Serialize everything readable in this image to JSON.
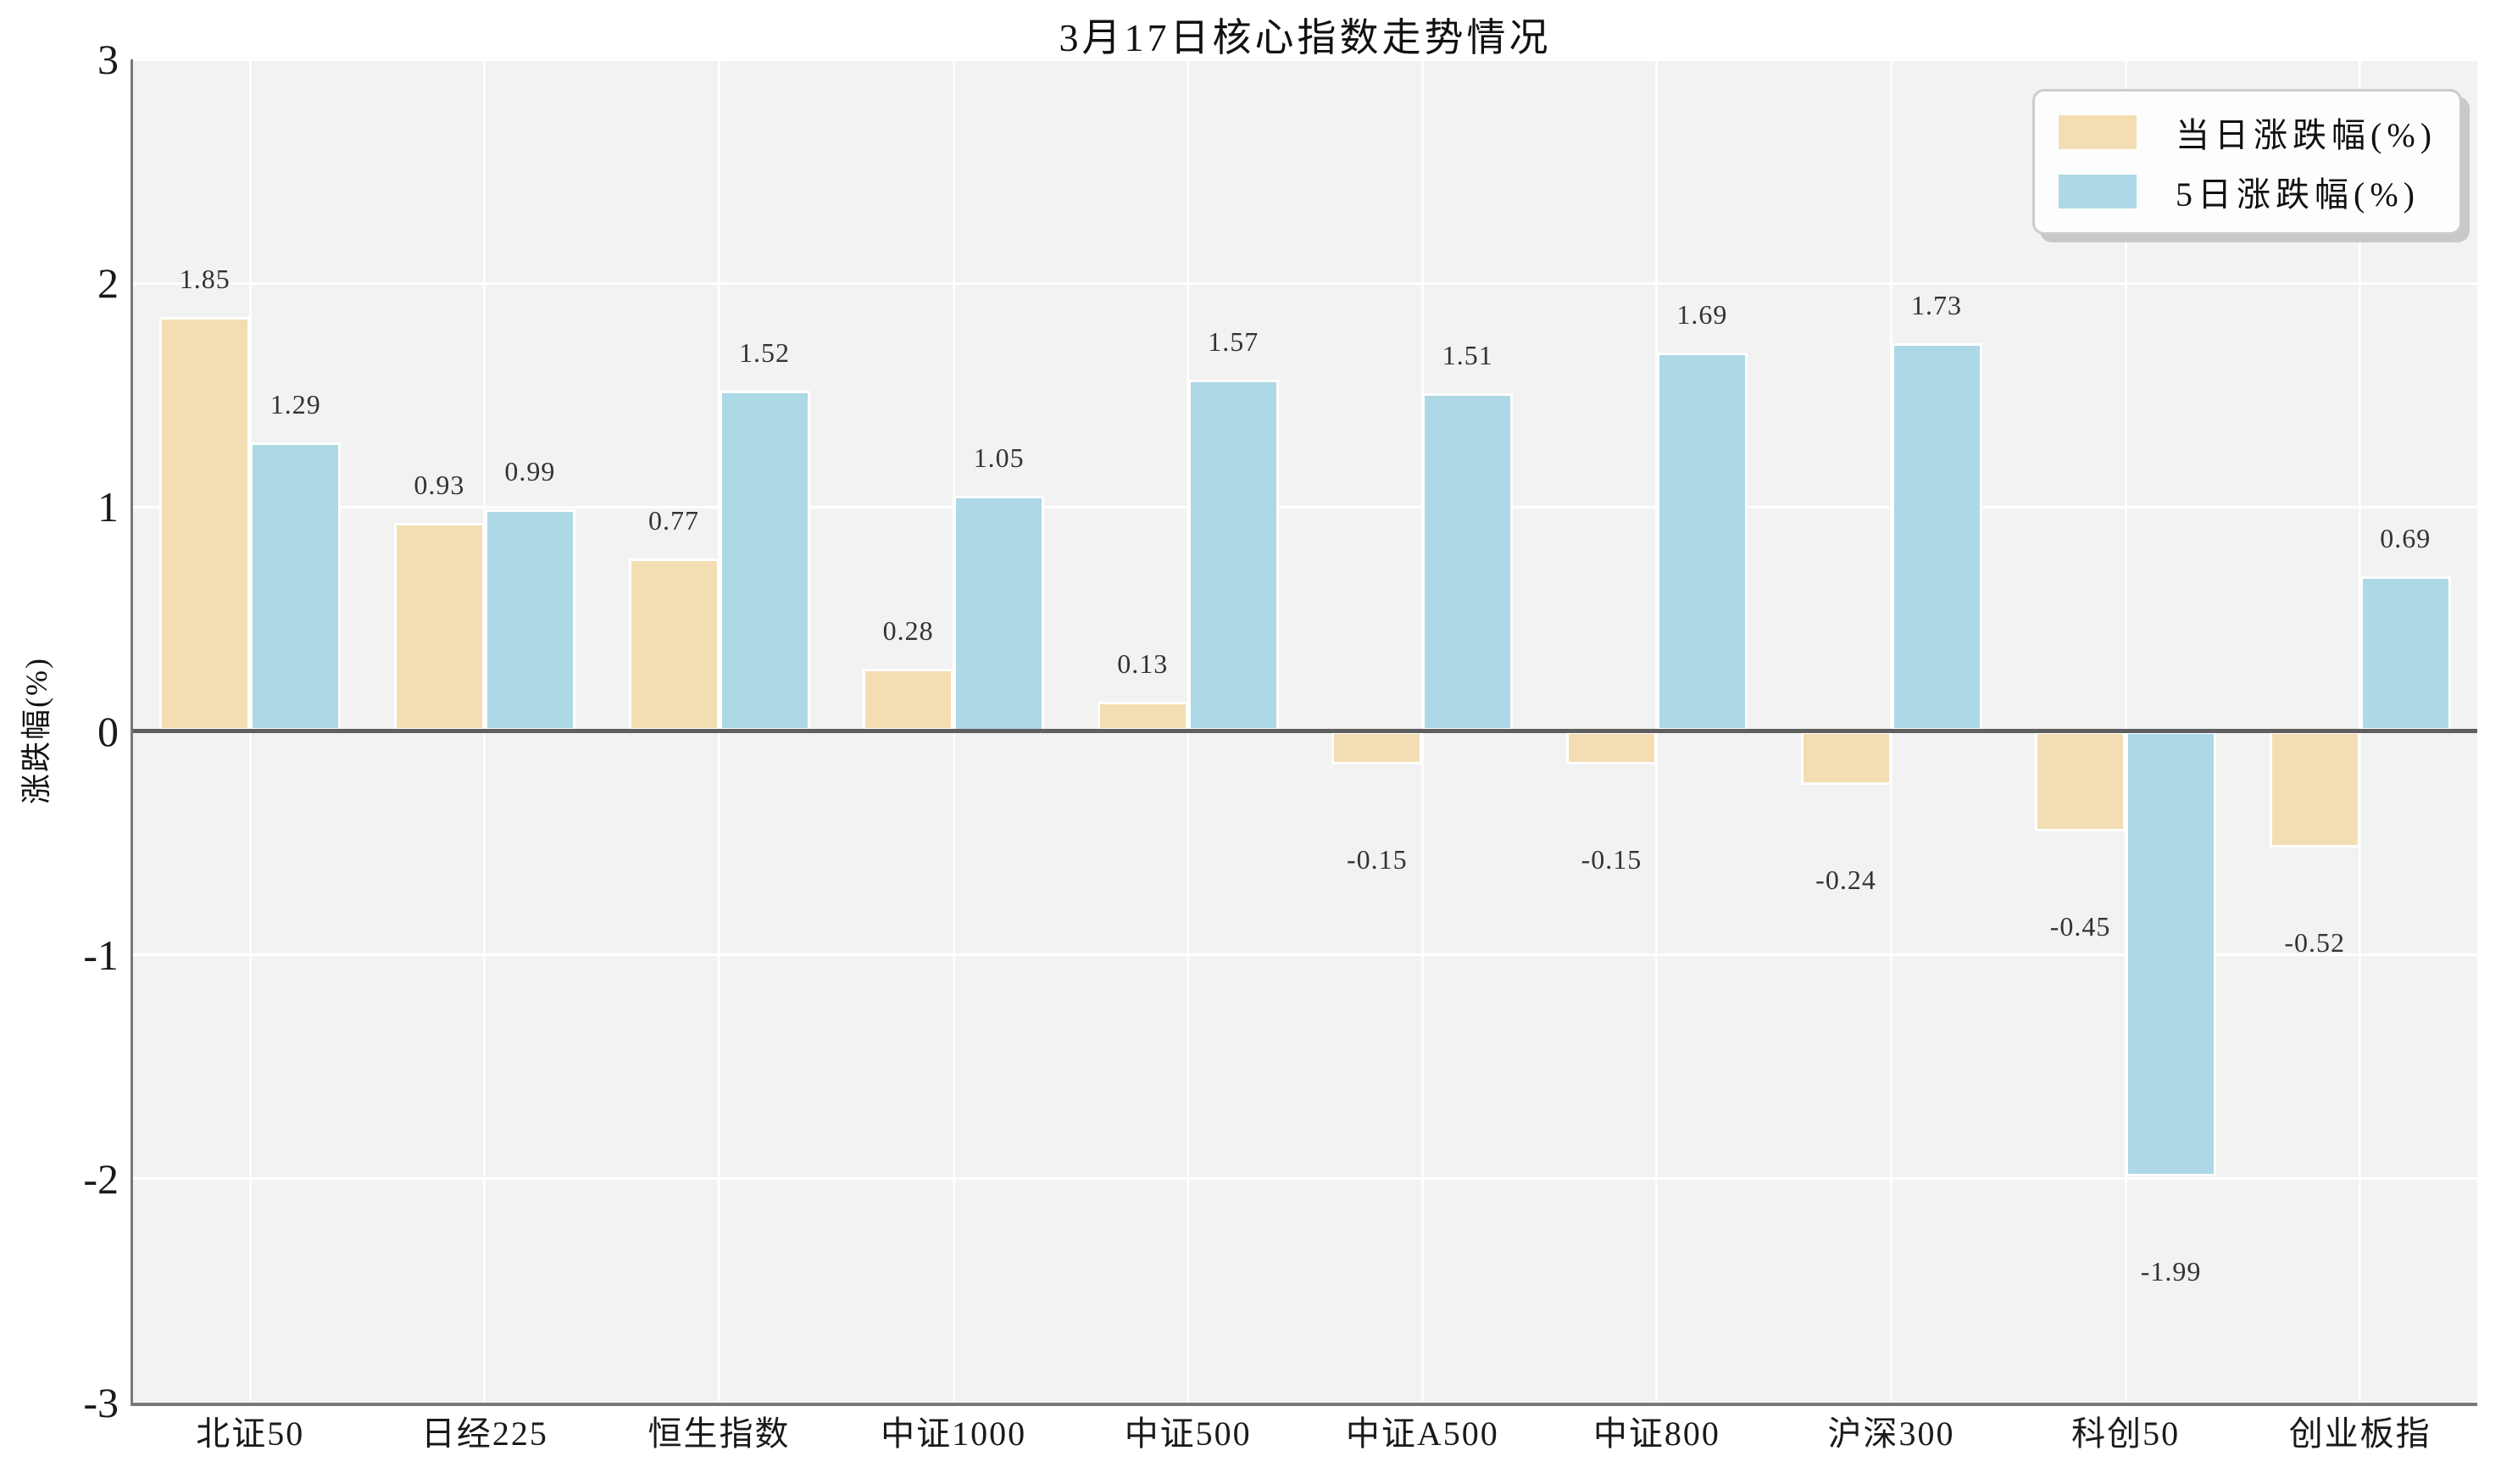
{
  "chart_data": {
    "type": "bar",
    "title": "3月17日核心指数走势情况",
    "ylabel": "涨跌幅(%)",
    "xlabel": "",
    "categories": [
      "北证50",
      "日经225",
      "恒生指数",
      "中证1000",
      "中证500",
      "中证A500",
      "中证800",
      "沪深300",
      "科创50",
      "创业板指"
    ],
    "series": [
      {
        "name": "当日涨跌幅(%)",
        "color": "#f3deb3",
        "values": [
          1.85,
          0.93,
          0.77,
          0.28,
          0.13,
          -0.15,
          -0.15,
          -0.24,
          -0.45,
          -0.52
        ]
      },
      {
        "name": "5日涨跌幅(%)",
        "color": "#add8e6",
        "values": [
          1.29,
          0.99,
          1.52,
          1.05,
          1.57,
          1.51,
          1.69,
          1.73,
          -1.99,
          0.69
        ]
      }
    ],
    "ylim": [
      -3,
      3
    ],
    "yticks": [
      3,
      2,
      1,
      0,
      -1,
      -2,
      -3
    ],
    "grid": true,
    "legend_position": "upper-right",
    "style": {
      "figure_background": "#ffffff",
      "plot_background": "#f2f2f2",
      "gridline_color": "#ffffff",
      "spine_color": "#787878",
      "zero_line_color": "#5f5f5f",
      "tick_text_color": "#1a1a1a",
      "value_label_color": "#333333",
      "legend_background": "#fdfdfd",
      "legend_border_color": "#cccccc",
      "legend_shadow_color": "#c9c9c9"
    }
  }
}
